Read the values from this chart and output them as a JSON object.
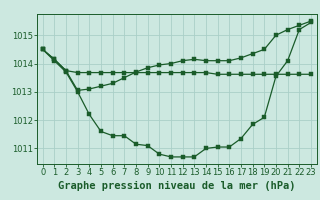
{
  "title": "Graphe pression niveau de la mer (hPa)",
  "bg_color": "#cce8e0",
  "grid_color": "#aacfc8",
  "line_color": "#1a5c2a",
  "xlim": [
    -0.5,
    23.5
  ],
  "ylim": [
    1010.45,
    1015.75
  ],
  "yticks": [
    1011,
    1012,
    1013,
    1014,
    1015
  ],
  "xticks": [
    0,
    1,
    2,
    3,
    4,
    5,
    6,
    7,
    8,
    9,
    10,
    11,
    12,
    13,
    14,
    15,
    16,
    17,
    18,
    19,
    20,
    21,
    22,
    23
  ],
  "line1": [
    1014.5,
    1014.15,
    1013.75,
    1013.68,
    1013.68,
    1013.68,
    1013.68,
    1013.68,
    1013.68,
    1013.68,
    1013.68,
    1013.68,
    1013.68,
    1013.68,
    1013.68,
    1013.62,
    1013.62,
    1013.62,
    1013.62,
    1013.62,
    1013.62,
    1013.62,
    1013.62,
    1013.62
  ],
  "line2": [
    1014.5,
    1014.15,
    1013.75,
    1013.05,
    1013.1,
    1013.2,
    1013.3,
    1013.5,
    1013.7,
    1013.85,
    1013.95,
    1014.0,
    1014.1,
    1014.15,
    1014.1,
    1014.1,
    1014.1,
    1014.2,
    1014.35,
    1014.5,
    1015.0,
    1015.2,
    1015.35,
    1015.5
  ],
  "line3": [
    1014.5,
    1014.1,
    1013.7,
    1013.0,
    1012.2,
    1011.6,
    1011.45,
    1011.45,
    1011.15,
    1011.1,
    1010.8,
    1010.7,
    1010.7,
    1010.7,
    1011.0,
    1011.05,
    1011.05,
    1011.35,
    1011.85,
    1012.1,
    1013.55,
    1014.1,
    1015.2,
    1015.45
  ],
  "title_fontsize": 7.5,
  "tick_fontsize": 6.0
}
